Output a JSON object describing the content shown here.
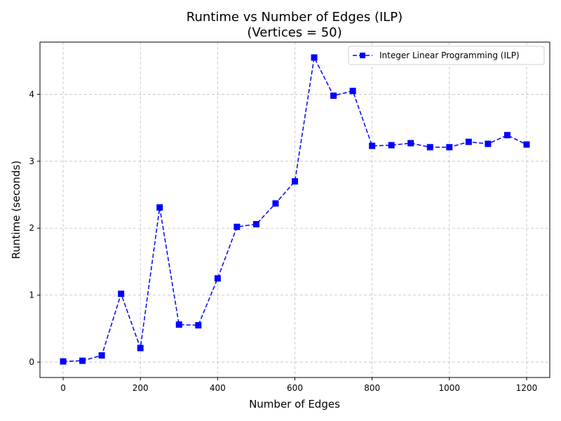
{
  "chart_data": {
    "type": "line",
    "title": "Runtime vs Number of Edges (ILP)",
    "subtitle": "(Vertices = 50)",
    "xlabel": "Number of Edges",
    "ylabel": "Runtime (seconds)",
    "xlim": [
      -60,
      1260
    ],
    "ylim": [
      -0.23,
      4.78
    ],
    "x_ticks": [
      0,
      200,
      400,
      600,
      800,
      1000,
      1200
    ],
    "y_ticks": [
      0,
      1,
      2,
      3,
      4
    ],
    "grid": true,
    "legend_position": "top-right",
    "series": [
      {
        "name": "Integer Linear Programming (ILP)",
        "color": "#0000ff",
        "line_style": "dashed",
        "marker": "square",
        "x": [
          0,
          50,
          100,
          150,
          200,
          250,
          300,
          350,
          400,
          450,
          500,
          550,
          600,
          650,
          700,
          750,
          800,
          850,
          900,
          950,
          1000,
          1050,
          1100,
          1150,
          1200
        ],
        "y": [
          0.01,
          0.02,
          0.1,
          1.02,
          0.21,
          2.31,
          0.56,
          0.55,
          1.25,
          2.02,
          2.06,
          2.37,
          2.7,
          4.55,
          3.98,
          4.05,
          3.23,
          3.24,
          3.27,
          3.21,
          3.21,
          3.29,
          3.26,
          3.39,
          3.25
        ]
      }
    ]
  }
}
